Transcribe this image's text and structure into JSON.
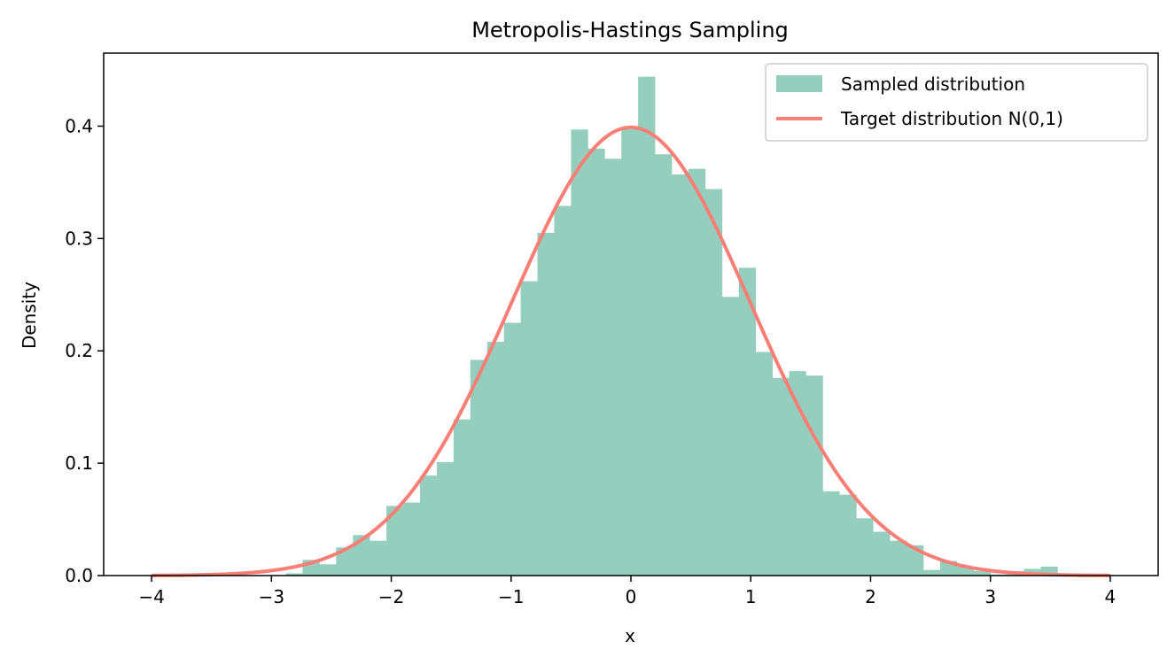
{
  "chart_data": {
    "type": "bar",
    "title": "Metropolis-Hastings Sampling",
    "xlabel": "x",
    "ylabel": "Density",
    "xlim": [
      -4.4,
      4.4
    ],
    "ylim": [
      0,
      0.465
    ],
    "xticks": [
      -4,
      -3,
      -2,
      -1,
      0,
      1,
      2,
      3,
      4
    ],
    "xtick_labels": [
      "−4",
      "−3",
      "−2",
      "−1",
      "0",
      "1",
      "2",
      "3",
      "4"
    ],
    "yticks": [
      0.0,
      0.1,
      0.2,
      0.3,
      0.4
    ],
    "ytick_labels": [
      "0.0",
      "0.1",
      "0.2",
      "0.3",
      "0.4"
    ],
    "grid": false,
    "legend_position": "top-right",
    "series": [
      {
        "name": "Sampled distribution",
        "kind": "histogram",
        "color": "#96cebd",
        "bin_width": 0.14,
        "bin_start": -2.88,
        "values": [
          0.002,
          0.014,
          0.01,
          0.025,
          0.036,
          0.031,
          0.062,
          0.065,
          0.089,
          0.101,
          0.139,
          0.192,
          0.208,
          0.225,
          0.262,
          0.305,
          0.329,
          0.397,
          0.38,
          0.371,
          0.399,
          0.444,
          0.375,
          0.357,
          0.362,
          0.344,
          0.248,
          0.274,
          0.199,
          0.176,
          0.182,
          0.178,
          0.075,
          0.072,
          0.051,
          0.039,
          0.031,
          0.027,
          0.005,
          0.013,
          0.008,
          0.004,
          0.001,
          0.004,
          0.006,
          0.008
        ]
      },
      {
        "name": "Target distribution N(0,1)",
        "kind": "line",
        "color": "#f97f76",
        "function": "normal_pdf",
        "mean": 0,
        "std": 1,
        "x_range": [
          -4,
          4
        ]
      }
    ]
  }
}
